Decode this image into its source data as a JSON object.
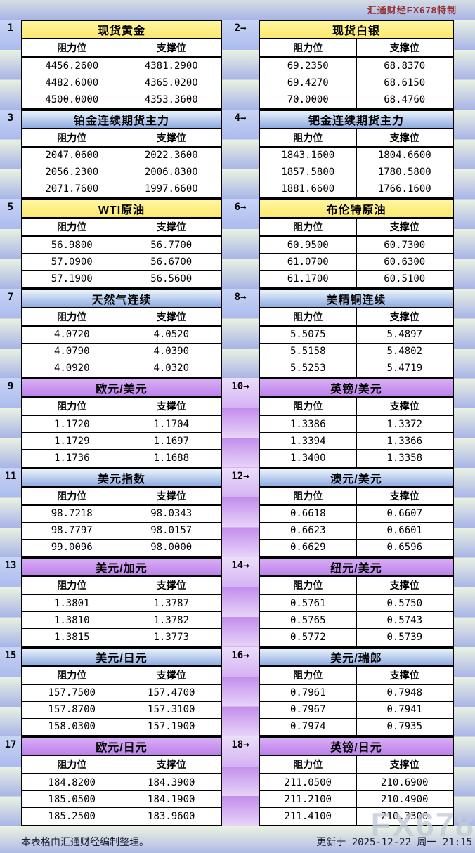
{
  "header": {
    "credit": "汇通财经FX678特制"
  },
  "watermark": "FX678",
  "footer": {
    "note": "本表格由汇通财经编制整理。",
    "updated": "更新于 2025-12-22 周一 21:15"
  },
  "colors": {
    "yellow_title": "#FBEE82",
    "blue_title_top": "#E9F4FB",
    "blue_title_bottom": "#8FABE2",
    "purple_title_top": "#D9AEF6",
    "purple_title_bottom": "#BC81EA",
    "stripe_green": "#EAF2E1",
    "stripe_blue": "#A8B4E7",
    "stripe_purple_dark": "#C38DEC",
    "stripe_purple_light": "#E7D4F8",
    "credit_text": "#932F2F",
    "footer_text": "#1A1A33",
    "watermark_text": "#C3CAD9"
  },
  "chart_data": {
    "type": "table",
    "col_headers": [
      "阻力位",
      "支撑位"
    ],
    "tables": [
      {
        "num": "1",
        "title": "现货黄金",
        "theme": "yellow",
        "resistance": [
          "4456.2600",
          "4482.6000",
          "4500.0000"
        ],
        "support": [
          "4381.2900",
          "4365.0200",
          "4353.3600"
        ]
      },
      {
        "num": "2→",
        "title": "现货白银",
        "theme": "yellow",
        "resistance": [
          "69.2350",
          "69.4270",
          "70.0000"
        ],
        "support": [
          "68.8370",
          "68.6150",
          "68.4760"
        ]
      },
      {
        "num": "3",
        "title": "铂金连续期货主力",
        "theme": "blue",
        "resistance": [
          "2047.0600",
          "2056.2300",
          "2071.7600"
        ],
        "support": [
          "2022.3600",
          "2006.8300",
          "1997.6600"
        ]
      },
      {
        "num": "4→",
        "title": "钯金连续期货主力",
        "theme": "blue",
        "resistance": [
          "1843.1600",
          "1857.5800",
          "1881.6600"
        ],
        "support": [
          "1804.6600",
          "1780.5800",
          "1766.1600"
        ]
      },
      {
        "num": "5",
        "title": "WTI原油",
        "theme": "yellow",
        "resistance": [
          "56.9800",
          "57.0900",
          "57.1900"
        ],
        "support": [
          "56.7700",
          "56.6700",
          "56.5600"
        ]
      },
      {
        "num": "6→",
        "title": "布伦特原油",
        "theme": "yellow",
        "resistance": [
          "60.9500",
          "61.0700",
          "61.1700"
        ],
        "support": [
          "60.7300",
          "60.6300",
          "60.5100"
        ]
      },
      {
        "num": "7",
        "title": "天然气连续",
        "theme": "blue",
        "resistance": [
          "4.0720",
          "4.0790",
          "4.0920"
        ],
        "support": [
          "4.0520",
          "4.0390",
          "4.0320"
        ]
      },
      {
        "num": "8→",
        "title": "美精铜连续",
        "theme": "blue",
        "resistance": [
          "5.5075",
          "5.5158",
          "5.5253"
        ],
        "support": [
          "5.4897",
          "5.4802",
          "5.4719"
        ]
      },
      {
        "num": "9",
        "title": "欧元/美元",
        "theme": "purple",
        "resistance": [
          "1.1720",
          "1.1729",
          "1.1736"
        ],
        "support": [
          "1.1704",
          "1.1697",
          "1.1688"
        ]
      },
      {
        "num": "10→",
        "title": "英镑/美元",
        "theme": "purple",
        "resistance": [
          "1.3386",
          "1.3394",
          "1.3400"
        ],
        "support": [
          "1.3372",
          "1.3366",
          "1.3358"
        ]
      },
      {
        "num": "11",
        "title": "美元指数",
        "theme": "blue",
        "resistance": [
          "98.7218",
          "98.7797",
          "99.0096"
        ],
        "support": [
          "98.0343",
          "98.0157",
          "98.0000"
        ]
      },
      {
        "num": "12→",
        "title": "澳元/美元",
        "theme": "blue",
        "resistance": [
          "0.6618",
          "0.6623",
          "0.6629"
        ],
        "support": [
          "0.6607",
          "0.6601",
          "0.6596"
        ]
      },
      {
        "num": "13",
        "title": "美元/加元",
        "theme": "purple",
        "resistance": [
          "1.3801",
          "1.3810",
          "1.3815"
        ],
        "support": [
          "1.3787",
          "1.3782",
          "1.3773"
        ]
      },
      {
        "num": "14→",
        "title": "纽元/美元",
        "theme": "purple",
        "resistance": [
          "0.5761",
          "0.5765",
          "0.5772"
        ],
        "support": [
          "0.5750",
          "0.5743",
          "0.5739"
        ]
      },
      {
        "num": "15",
        "title": "美元/日元",
        "theme": "blue",
        "resistance": [
          "157.7500",
          "157.8700",
          "158.0300"
        ],
        "support": [
          "157.4700",
          "157.3100",
          "157.1900"
        ]
      },
      {
        "num": "16→",
        "title": "美元/瑞郎",
        "theme": "blue",
        "resistance": [
          "0.7961",
          "0.7967",
          "0.7974"
        ],
        "support": [
          "0.7948",
          "0.7941",
          "0.7935"
        ]
      },
      {
        "num": "17",
        "title": "欧元/日元",
        "theme": "purple",
        "resistance": [
          "184.8200",
          "185.0500",
          "185.2500"
        ],
        "support": [
          "184.3900",
          "184.1900",
          "183.9600"
        ]
      },
      {
        "num": "18→",
        "title": "英镑/日元",
        "theme": "purple",
        "resistance": [
          "211.0500",
          "211.2100",
          "211.4100"
        ],
        "support": [
          "210.6900",
          "210.4900",
          "210.3300"
        ]
      }
    ]
  }
}
